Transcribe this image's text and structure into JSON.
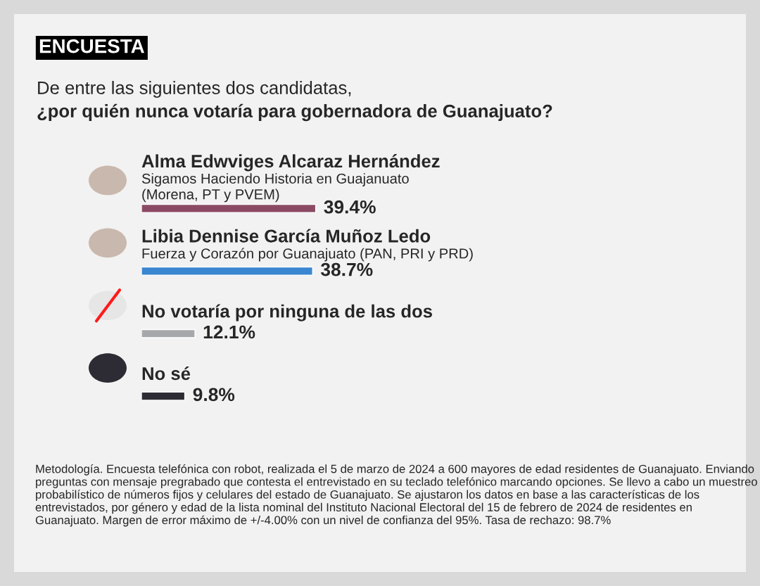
{
  "chart_data": {
    "type": "bar",
    "orientation": "horizontal",
    "title": "ENCUESTA",
    "subtitle": "De entre las siguientes dos candidatas,\n¿por quién nunca votaría para gobernadora de Guanajuato?",
    "categories": [
      "Alma Edwviges Alcaraz Hernández\nSigamos Haciendo Historia en Guajanuato\n(Morena, PT y PVEM)",
      "Libia Dennise García Muñoz Ledo\nFuerza y Corazón por Guanajuato (PAN, PRI y PRD)",
      "No votaría por ninguna de las dos",
      "No sé"
    ],
    "values": [
      39.4,
      38.7,
      12.1,
      9.8
    ],
    "colors": [
      "#8b4a64",
      "#3a86d0",
      "#a6a8ab",
      "#2d2b33"
    ],
    "value_labels": [
      "39.4%",
      "38.7%",
      "12.1%",
      "9.8%"
    ],
    "annotations": [
      "Metodología. Encuesta telefónica con robot, realizada el 5 de marzo de 2024 a 600 mayores de edad residentes de Guanajuato. Enviando preguntas con mensaje pregrabado que contesta el entrevistado en su teclado telefónico marcando opciones. Se llevo a cabo un muestreo probabilístico de números fijos y celulares del estado de Guanajuato. Se ajustaron los datos en base a las características de los entrevistados, por género y edad de la lista nominal del Instituto Nacional Electoral del 15 de febrero de 2024 de residentes en Guanajuato. Margen de error máximo de +/-4.00% con un nivel de confianza del 95%. Tasa de rechazo: 98.7%"
    ]
  }
}
